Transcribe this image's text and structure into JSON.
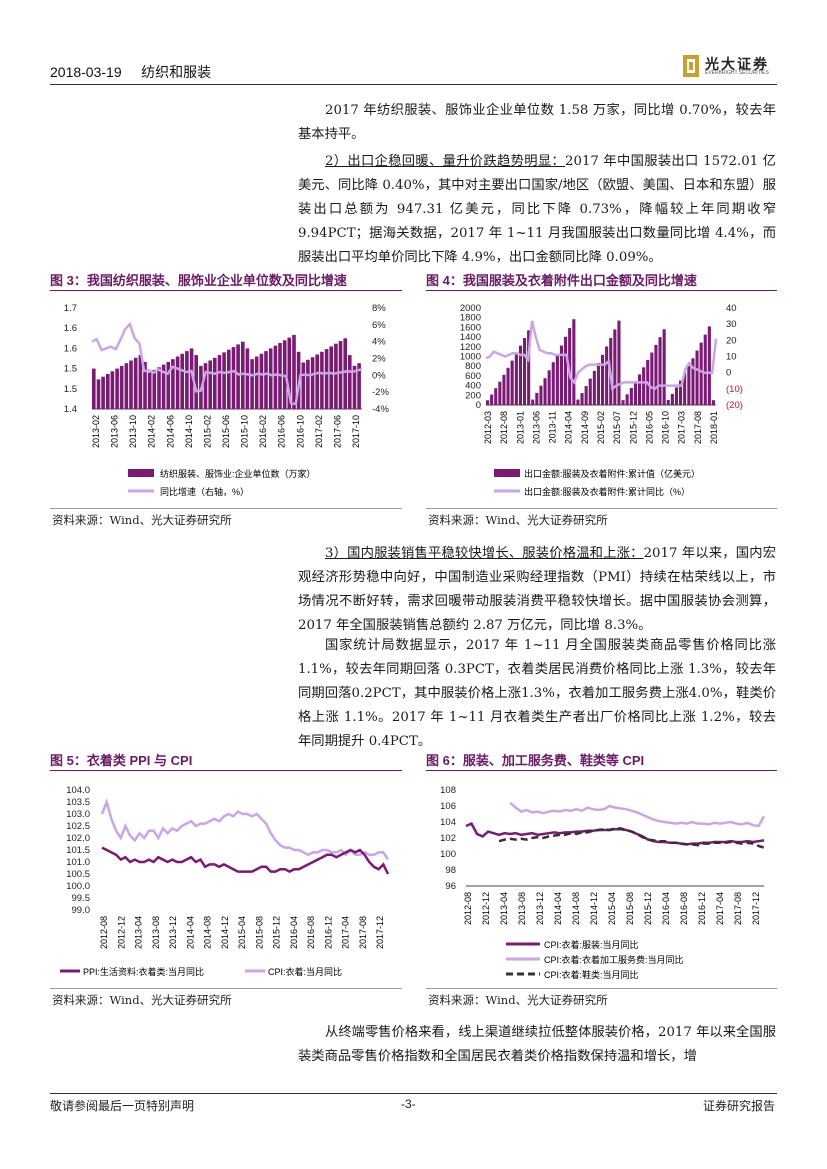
{
  "header": {
    "date": "2018-03-19",
    "sector": "纺织和服装",
    "logo_cn": "光大证券",
    "logo_en": "EVERBRIGHT SECURITIES"
  },
  "para1": "2017 年纺织服装、服饰业企业单位数 1.58 万家，同比增 0.70%，较去年基本持平。",
  "para2_head": "2）出口企稳回暖、量升价跌趋势明显：",
  "para2_body": "2017 年中国服装出口 1572.01 亿美元、同比降 0.40%，其中对主要出口国家/地区（欧盟、美国、日本和东盟）服装出口总额为 947.31 亿美元，同比下降 0.73%，降幅较上年同期收窄 9.94PCT；据海关数据，2017 年 1~11 月我国服装出口数量同比增 4.4%，而服装出口平均单价同比下降 4.9%，出口金额同比降 0.09%。",
  "fig3": {
    "title": "图 3：我国纺织服装、服饰业企业单位数及同比增速",
    "source": "资料来源：Wind、光大证券研究所",
    "legend": [
      "纺织服装、服饰业:企业单位数（万家）",
      "同比增速（右轴，%）"
    ],
    "left_ticks": [
      "1.7",
      "1.6",
      "1.6",
      "1.5",
      "1.5",
      "1.4"
    ],
    "right_ticks": [
      "8%",
      "6%",
      "4%",
      "2%",
      "0%",
      "-2%",
      "-4%"
    ],
    "x_ticks": [
      "2013-02",
      "2013-06",
      "2013-10",
      "2014-02",
      "2014-06",
      "2014-10",
      "2015-02",
      "2015-06",
      "2015-10",
      "2016-02",
      "2016-06",
      "2016-10",
      "2017-02",
      "2017-06",
      "2017-10"
    ]
  },
  "fig4": {
    "title": "图 4：我国服装及衣着附件出口金额及同比增速",
    "source": "资料来源：Wind、光大证券研究所",
    "legend": [
      "出口金额:服装及衣着附件:累计值（亿美元）",
      "出口金额:服装及衣着附件:累计同比（%）"
    ],
    "left_ticks": [
      "2000",
      "1800",
      "1600",
      "1400",
      "1200",
      "1000",
      "800",
      "600",
      "400",
      "200",
      "0"
    ],
    "right_ticks": [
      "40",
      "30",
      "20",
      "10",
      "0",
      "(10)",
      "(20)"
    ],
    "x_ticks": [
      "2012-03",
      "2012-08",
      "2013-01",
      "2013-06",
      "2013-11",
      "2014-04",
      "2014-09",
      "2015-02",
      "2015-07",
      "2015-12",
      "2016-05",
      "2016-10",
      "2017-03",
      "2017-08",
      "2018-01"
    ]
  },
  "para3_head": "3）国内服装销售平稳较快增长、服装价格温和上涨：",
  "para3_body": "2017 年以来，国内宏观经济形势稳中向好，中国制造业采购经理指数（PMI）持续在枯荣线以上，市场情况不断好转，需求回暖带动服装消费平稳较快增长。据中国服装协会测算，2017 年全国服装销售总额约 2.87 万亿元，同比增 8.3%。",
  "para4": "国家统计局数据显示，2017 年 1~11 月全国服装类商品零售价格同比涨 1.1%，较去年同期回落 0.3PCT，衣着类居民消费价格同比上涨 1.3%，较去年同期回落0.2PCT，其中服装价格上涨1.3%，衣着加工服务费上涨4.0%，鞋类价格上涨 1.1%。2017 年 1~11 月衣着类生产者出厂价格同比上涨 1.2%，较去年同期提升 0.4PCT。",
  "fig5": {
    "title": "图 5：衣着类 PPI 与 CPI",
    "source": "资料来源：Wind、光大证券研究所",
    "legend": [
      "PPI:生活资料:衣着类:当月同比",
      "CPI:衣着:当月同比"
    ],
    "y_ticks": [
      "104.0",
      "103.5",
      "103.0",
      "102.5",
      "102.0",
      "101.5",
      "101.0",
      "100.5",
      "100.0",
      "99.5",
      "99.0"
    ],
    "x_ticks": [
      "2012-08",
      "2012-12",
      "2013-04",
      "2013-08",
      "2013-12",
      "2014-04",
      "2014-08",
      "2014-12",
      "2015-04",
      "2015-08",
      "2015-12",
      "2016-04",
      "2016-08",
      "2016-12",
      "2017-04",
      "2017-08",
      "2017-12"
    ]
  },
  "fig6": {
    "title": "图 6：服装、加工服务费、鞋类等 CPI",
    "source": "资料来源：Wind、光大证券研究所",
    "legend": [
      "CPI:衣着:服装:当月同比",
      "CPI:衣着:衣着加工服务费:当月同比",
      "CPI:衣着:鞋类:当月同比"
    ],
    "y_ticks": [
      "108",
      "106",
      "104",
      "102",
      "100",
      "98",
      "96"
    ],
    "x_ticks": [
      "2012-08",
      "2012-12",
      "2013-04",
      "2013-08",
      "2013-12",
      "2014-04",
      "2014-08",
      "2014-12",
      "2015-04",
      "2015-08",
      "2015-12",
      "2016-04",
      "2016-08",
      "2016-12",
      "2017-04",
      "2017-08",
      "2017-12"
    ]
  },
  "para5": "从终端零售价格来看，线上渠道继续拉低整体服装价格，2017 年以来全国服装类商品零售价格指数和全国居民衣着类价格指数保持温和增长，增",
  "footer": {
    "left": "敬请参阅最后一页特别声明",
    "page": "-3-",
    "right": "证券研究报告"
  }
}
